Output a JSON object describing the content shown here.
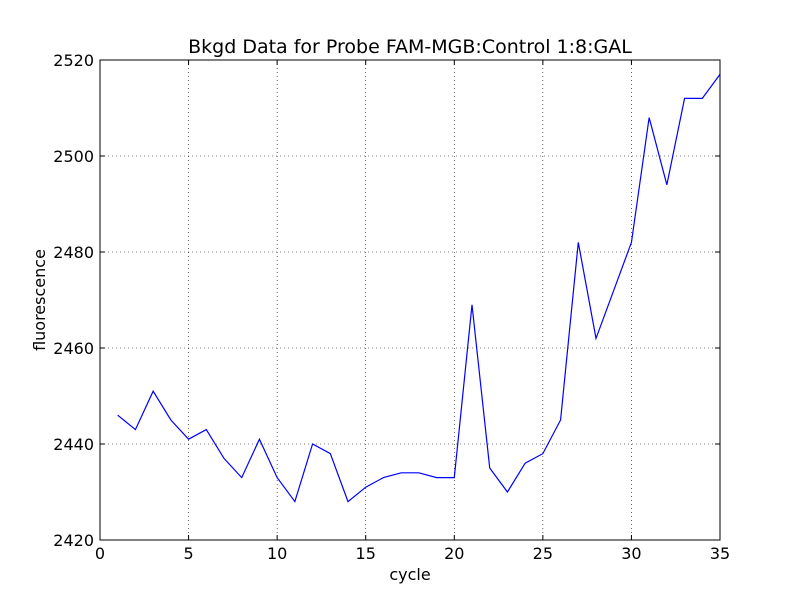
{
  "chart_data": {
    "type": "line",
    "title": "Bkgd Data for Probe FAM-MGB:Control 1:8:GAL",
    "xlabel": "cycle",
    "ylabel": "fluorescence",
    "xlim": [
      0,
      35
    ],
    "ylim": [
      2420,
      2520
    ],
    "xticks": [
      0,
      5,
      10,
      15,
      20,
      25,
      30,
      35
    ],
    "yticks": [
      2420,
      2440,
      2460,
      2480,
      2500,
      2520
    ],
    "grid": true,
    "series": [
      {
        "color": "#0000ff",
        "x": [
          1,
          2,
          3,
          4,
          5,
          6,
          7,
          8,
          9,
          10,
          11,
          12,
          13,
          14,
          15,
          16,
          17,
          18,
          19,
          20,
          21,
          22,
          23,
          24,
          25,
          26,
          27,
          28,
          29,
          30,
          31,
          32,
          33,
          34,
          35
        ],
        "y": [
          2446,
          2443,
          2451,
          2445,
          2441,
          2443,
          2437,
          2433,
          2441,
          2433,
          2428,
          2440,
          2438,
          2428,
          2431,
          2433,
          2434,
          2434,
          2433,
          2433,
          2469,
          2435,
          2430,
          2436,
          2438,
          2445,
          2482,
          2462,
          2472,
          2482,
          2508,
          2494,
          2512,
          2512,
          2517
        ]
      }
    ]
  }
}
